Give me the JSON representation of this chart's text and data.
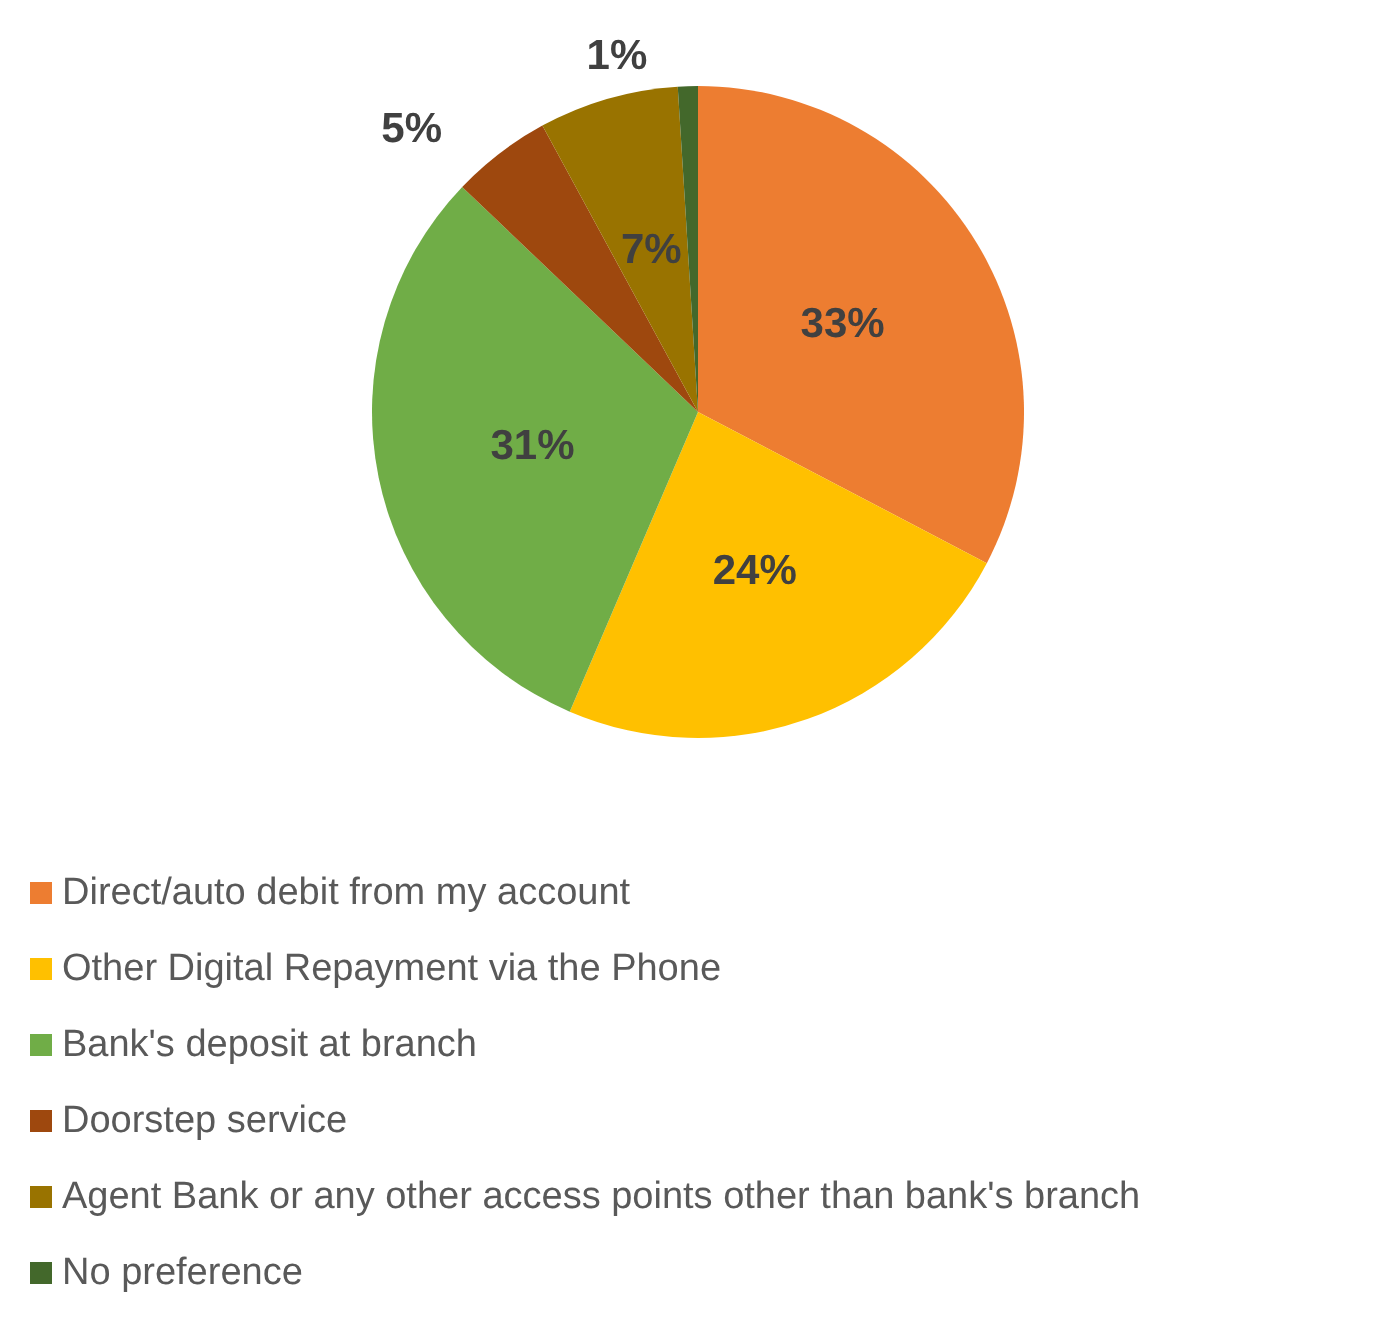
{
  "chart_data": {
    "type": "pie",
    "categories": [
      "Direct/auto debit from my account",
      "Other Digital Repayment via the Phone",
      "Bank's deposit at branch",
      "Doorstep service",
      "Agent Bank or any other access points other than bank's branch",
      "No preference"
    ],
    "values": [
      33,
      24,
      31,
      5,
      7,
      1
    ],
    "colors": [
      "#ed7d31",
      "#ffc000",
      "#70ad47",
      "#9e480e",
      "#997300",
      "#43682b"
    ],
    "value_labels": [
      "33%",
      "24%",
      "31%",
      "5%",
      "7%",
      "1%"
    ],
    "legend": "bottom"
  }
}
